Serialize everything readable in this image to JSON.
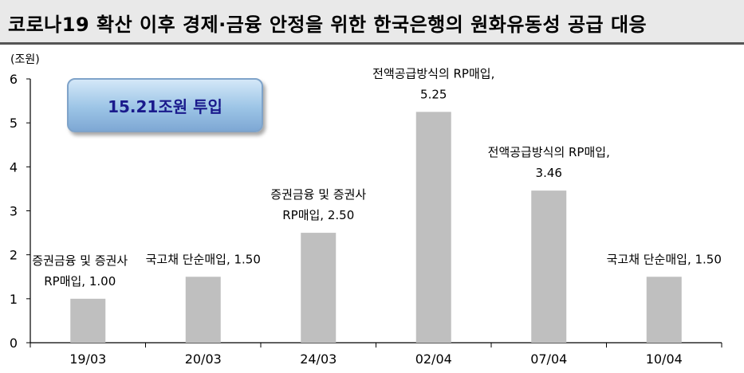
{
  "header": {
    "title": "코로나19 확산 이후 경제·금융 안정을 위한 한국은행의 원화유동성 공급 대응"
  },
  "callout": {
    "text": "15.21조원 투입"
  },
  "colors": {
    "bar": "#bfbfbf",
    "title_bg": "#e9e9e9",
    "callout_text": "#1a1a8c"
  },
  "chart_data": {
    "type": "bar",
    "title": "",
    "unit_label": "(조원)",
    "xlabel": "",
    "ylabel": "",
    "ylim": [
      0,
      6
    ],
    "yticks": [
      "0",
      "1",
      "2",
      "3",
      "4",
      "5",
      "6"
    ],
    "grid": false,
    "categories": [
      "19/03",
      "20/03",
      "24/03",
      "02/04",
      "07/04",
      "10/04"
    ],
    "values": [
      1.0,
      1.5,
      2.5,
      5.25,
      3.46,
      1.5
    ],
    "annotations": [
      {
        "category": "19/03",
        "lines": [
          "증권금융 및 증권사",
          "RP매입, 1.00"
        ]
      },
      {
        "category": "20/03",
        "lines": [
          "국고채 단순매입, 1.50"
        ]
      },
      {
        "category": "24/03",
        "lines": [
          "증권금융 및 증권사",
          "RP매입, 2.50"
        ]
      },
      {
        "category": "02/04",
        "lines": [
          "전액공급방식의 RP매입,",
          "5.25"
        ]
      },
      {
        "category": "07/04",
        "lines": [
          "전액공급방식의 RP매입,",
          "3.46"
        ]
      },
      {
        "category": "10/04",
        "lines": [
          "국고채 단순매입, 1.50"
        ]
      }
    ]
  }
}
